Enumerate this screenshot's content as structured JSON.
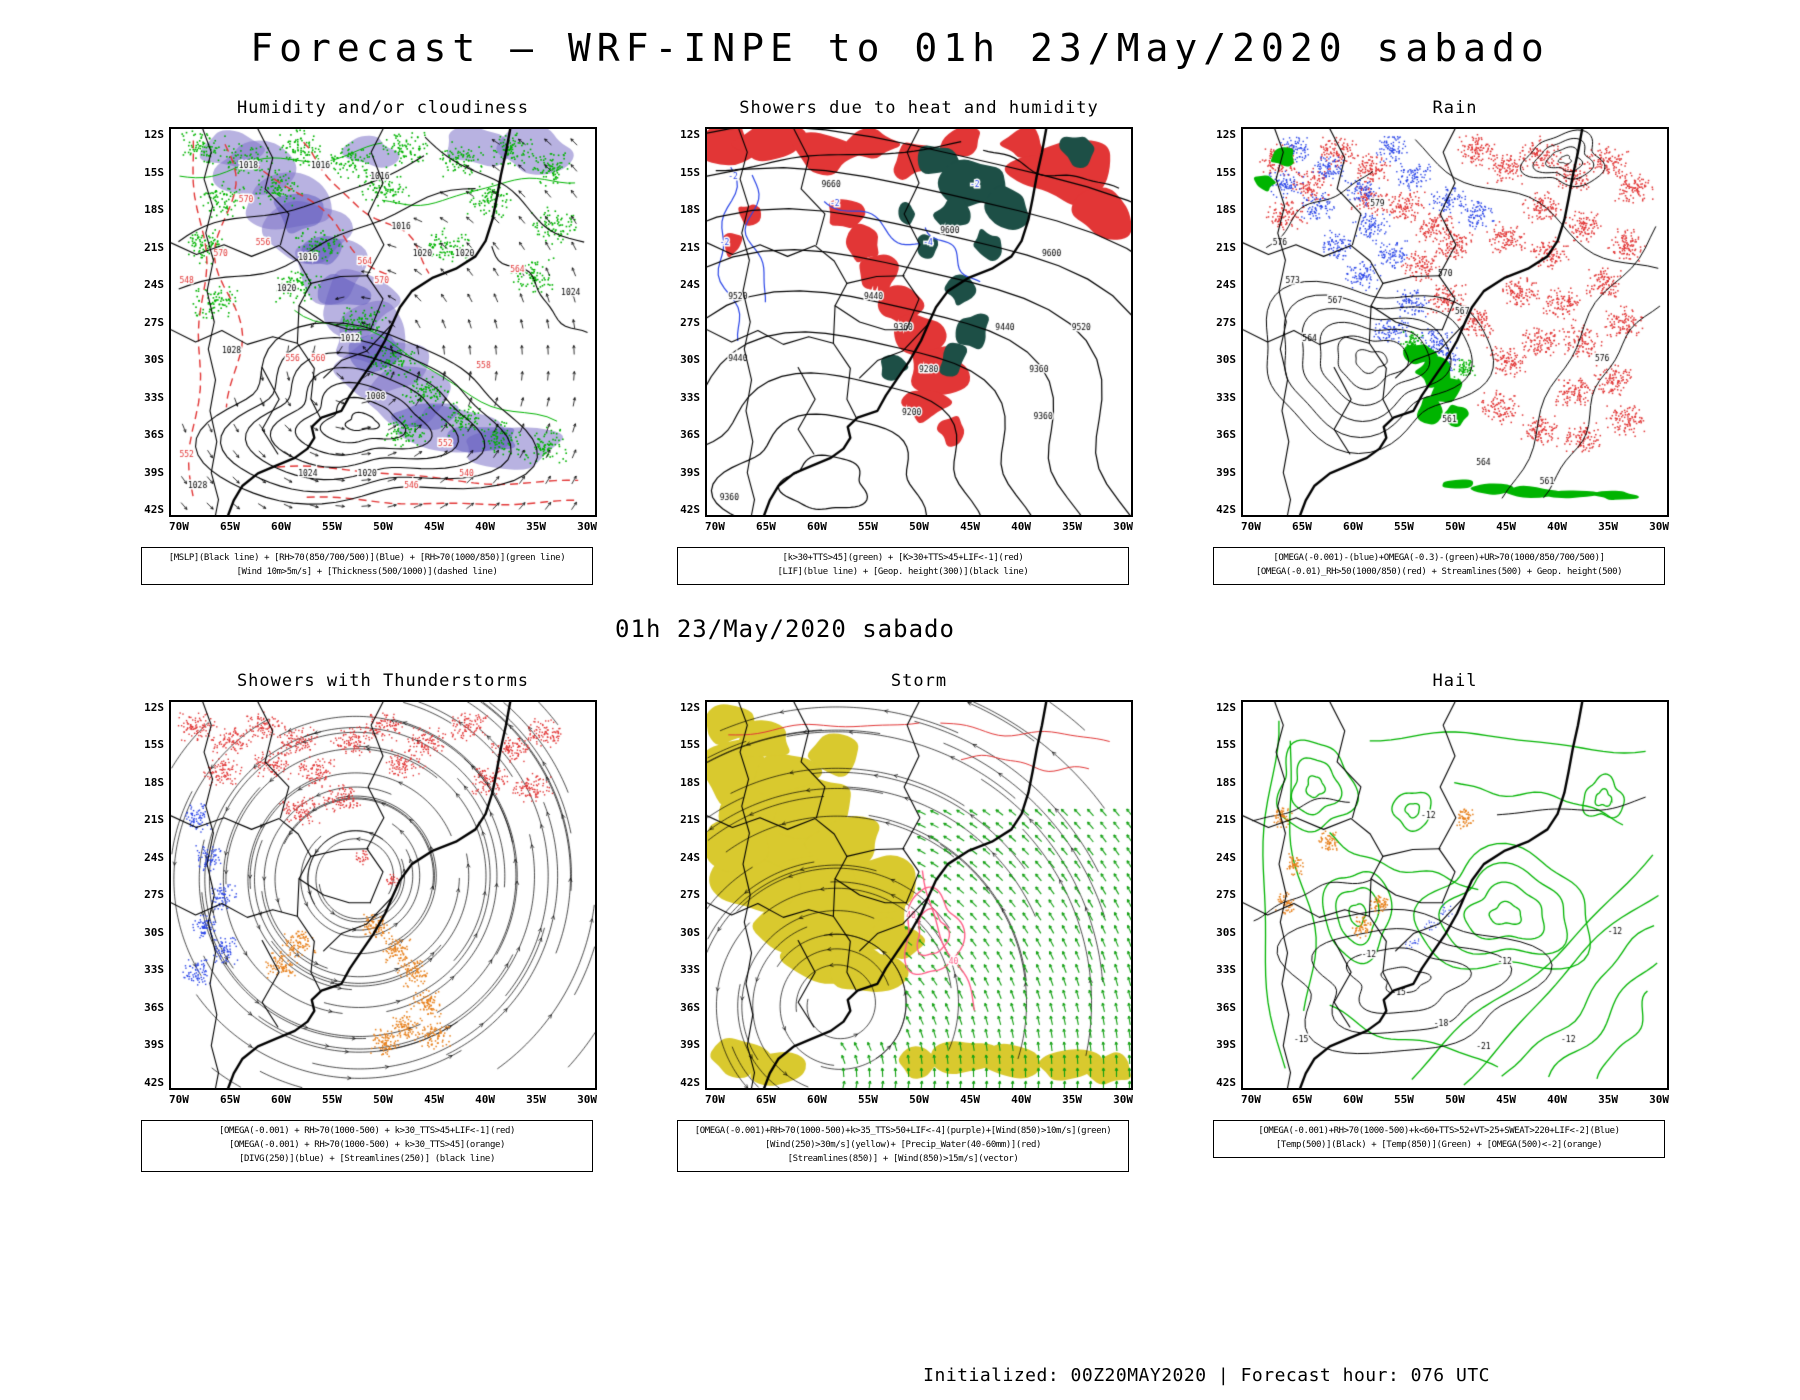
{
  "page": {
    "main_title": "Forecast — WRF-INPE to 01h 23/May/2020 sabado",
    "mid_title": "01h 23/May/2020 sabado",
    "footer": "Initialized: 00Z20MAY2020 | Forecast hour: 076 UTC"
  },
  "axes": {
    "lat_labels": [
      "12S",
      "15S",
      "18S",
      "21S",
      "24S",
      "27S",
      "30S",
      "33S",
      "36S",
      "39S",
      "42S"
    ],
    "lon_labels": [
      "70W",
      "65W",
      "60W",
      "55W",
      "50W",
      "45W",
      "40W",
      "35W",
      "30W"
    ]
  },
  "panels": [
    {
      "id": "humidity",
      "title": "Humidity and/or cloudiness",
      "caption": [
        "[MSLP](Black line) + [RH>70(850/700/500)](Blue) + [RH>70(1000/850)](green line)",
        "[Wind 10m>5m/s] + [Thickness(500/1000)](dashed line)"
      ]
    },
    {
      "id": "showers-heat",
      "title": "Showers due to heat and humidity",
      "caption": [
        "[k>30+TTS>45](green) + [K>30+TTS>45+LIF<-1](red)",
        "[LIF](blue line) + [Geop. height(300)](black line)"
      ]
    },
    {
      "id": "rain",
      "title": "Rain",
      "caption": [
        "[OMEGA(-0.001)-(blue)+OMEGA(-0.3)-(green)+UR>70(1000/850/700/500)]",
        "[OMEGA(-0.01)_RH>50(1000/850)(red) + Streamlines(500) + Geop. height(500)"
      ]
    },
    {
      "id": "thunderstorms",
      "title": "Showers with Thunderstorms",
      "caption": [
        "[OMEGA(-0.001) + RH>70(1000-500) + k>30_TTS>45+LIF<-1](red)",
        "[OMEGA(-0.001) + RH>70(1000-500) + k>30_TTS>45](orange)",
        "[DIVG(250)](blue) + [Streamlines(250)] (black line)"
      ]
    },
    {
      "id": "storm",
      "title": "Storm",
      "caption": [
        "[OMEGA(-0.001)+RH>70(1000-500)+k>35_TTS>50+LIF<-4](purple)+[Wind(850)>10m/s](green)",
        "[Wind(250)>30m/s](yellow)+ [Precip_Water(40-60mm)](red)",
        "[Streamlines(850)] + [Wind(850)>15m/s](vector)"
      ]
    },
    {
      "id": "hail",
      "title": "Hail",
      "caption": [
        "[OMEGA(-0.001)+RH>70(1000-500)+k<60+TTS>52+VT>25+SWEAT>220+LIF<-2](Blue)",
        "[Temp(500)](Black) + [Temp(850)](Green) + [OMEGA(500)<-2](orange)"
      ]
    }
  ],
  "colors": {
    "black": "#000000",
    "red": "#e23636",
    "green": "#00b400",
    "blue": "#2b46e8",
    "purple_shade": "#7d73c8",
    "purple_deep": "#5a55be",
    "dark_green": "#1d4f46",
    "yellow": "#d9c92e",
    "orange": "#e8821e",
    "pink": "#ff5f88",
    "vector_green": "#11a011"
  }
}
